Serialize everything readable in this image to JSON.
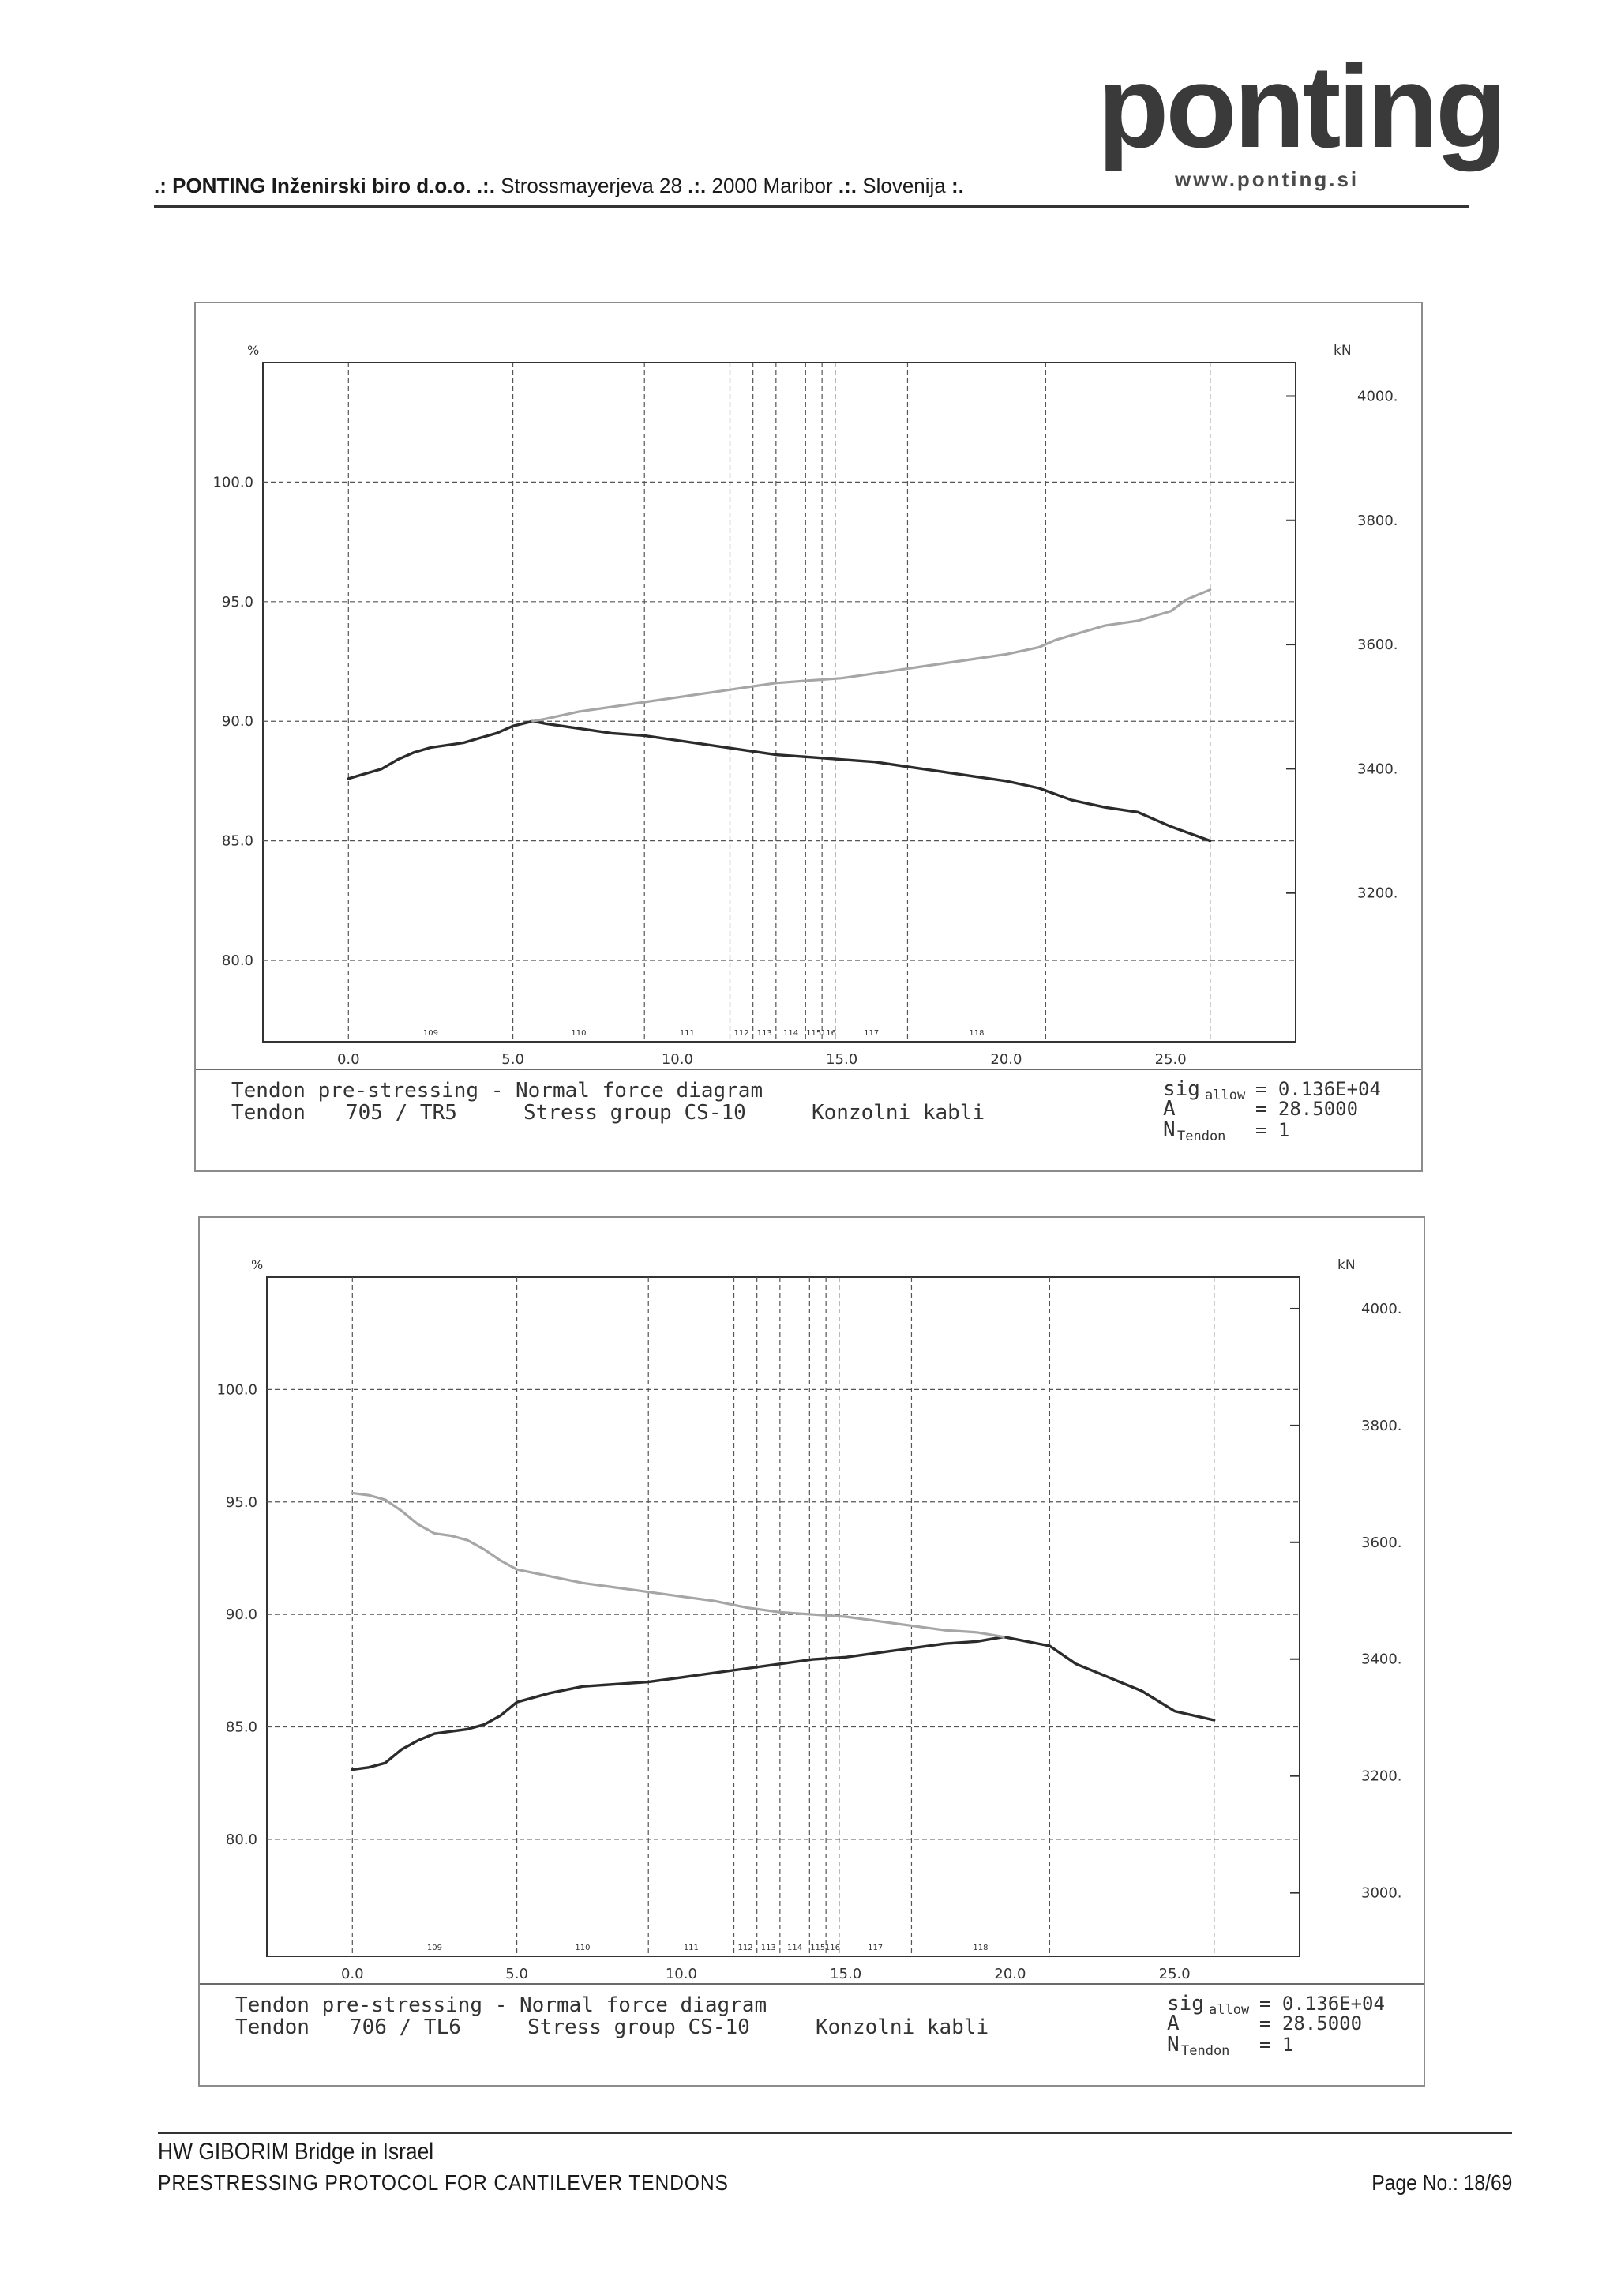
{
  "header": {
    "line_prefix": ".: ",
    "company": "PONTING Inženirski biro d.o.o.",
    "sep1": " .:. ",
    "street": "Strossmayerjeva 28",
    "sep2": " .:. ",
    "city": "2000 Maribor",
    "sep3": " .:. ",
    "country": "Slovenija",
    "line_suffix": " :.",
    "logo_text": "ponting",
    "logo_url": "www.ponting.si"
  },
  "footer": {
    "project": "HW GIBORIM Bridge in Israel",
    "document": "PRESTRESSING PROTOCOL FOR CANTILEVER TENDONS",
    "page": "Page No.: 18/69"
  },
  "colors": {
    "force_line": "#2b2b2b",
    "percent_line": "#a6a6a6",
    "grid": "#555555",
    "frame": "#8c8c8c"
  },
  "chart_data": [
    {
      "type": "line",
      "left_unit": "%",
      "right_unit": "kN",
      "left_ticks": [
        "100.0",
        "95.0",
        "90.0",
        "85.0",
        "80.0"
      ],
      "left_tick_values": [
        100,
        95,
        90,
        85,
        80
      ],
      "ylim": [
        76.6,
        105
      ],
      "right_ticks": [
        "4000.",
        "3800.",
        "3600.",
        "3400.",
        "3200."
      ],
      "right_tick_values": [
        3988.5,
        3788.5,
        3588.5,
        3388.5,
        3188.5
      ],
      "x_ticks": [
        "0.0",
        "5.0",
        "10.0",
        "15.0",
        "20.0",
        "25.0"
      ],
      "x_tick_values": [
        0,
        5,
        10,
        15,
        20,
        25
      ],
      "xlim": [
        -2.6,
        28.8
      ],
      "segment_boundaries": [
        0,
        5.0,
        9.0,
        11.6,
        12.3,
        13.0,
        13.9,
        14.4,
        14.8,
        17.0,
        21.2,
        26.2
      ],
      "segment_labels": [
        "109",
        "110",
        "111",
        "112",
        "113",
        "114",
        "115",
        "116",
        "117",
        "118"
      ],
      "series": [
        {
          "style": "dark",
          "x": [
            0,
            0.5,
            1,
            1.5,
            2,
            2.5,
            3,
            3.5,
            4,
            4.5,
            5,
            5.6,
            6,
            7,
            8,
            9,
            10,
            11,
            12,
            13,
            14,
            15,
            16,
            17,
            18,
            19,
            20,
            21,
            22,
            23,
            24,
            25,
            26.2
          ],
          "y": [
            87.6,
            87.8,
            88.0,
            88.4,
            88.7,
            88.9,
            89.0,
            89.1,
            89.3,
            89.5,
            89.8,
            90.0,
            89.9,
            89.7,
            89.5,
            89.4,
            89.2,
            89.0,
            88.8,
            88.6,
            88.5,
            88.4,
            88.3,
            88.1,
            87.9,
            87.7,
            87.5,
            87.2,
            86.7,
            86.4,
            86.2,
            85.6,
            85.0
          ]
        },
        {
          "style": "light",
          "x": [
            5.6,
            6,
            7,
            8,
            9,
            10,
            11,
            12,
            13,
            14,
            15,
            16,
            17,
            18,
            19,
            20,
            21,
            21.5,
            22,
            23,
            24,
            25,
            25.5,
            26.2
          ],
          "y": [
            90.0,
            90.1,
            90.4,
            90.6,
            90.8,
            91.0,
            91.2,
            91.4,
            91.6,
            91.7,
            91.8,
            92.0,
            92.2,
            92.4,
            92.6,
            92.8,
            93.1,
            93.4,
            93.6,
            94.0,
            94.2,
            94.6,
            95.1,
            95.5
          ]
        }
      ],
      "caption": {
        "line1": "Tendon pre-stressing   -   Normal force diagram",
        "tendon_label": "Tendon",
        "tendon_id": "705 / TR5",
        "stress_group": "Stress group CS-10",
        "cable_type": "Konzolni kabli",
        "sig_label": "sig",
        "sig_sub": "allow",
        "sig_value": "= 0.136E+04",
        "a_label": "A",
        "a_value": "= 28.5000",
        "n_label": "N",
        "n_sub": "Tendon",
        "n_value": "= 1"
      }
    },
    {
      "type": "line",
      "left_unit": "%",
      "right_unit": "kN",
      "left_ticks": [
        "100.0",
        "95.0",
        "90.0",
        "85.0",
        "80.0"
      ],
      "left_tick_values": [
        100,
        95,
        90,
        85,
        80
      ],
      "ylim": [
        74.8,
        105
      ],
      "right_ticks": [
        "4000.",
        "3800.",
        "3600.",
        "3400.",
        "3200.",
        "3000."
      ],
      "right_tick_values": [
        3988.5,
        3788.5,
        3588.5,
        3388.5,
        3188.5,
        2988.5
      ],
      "x_ticks": [
        "0.0",
        "5.0",
        "10.0",
        "15.0",
        "20.0",
        "25.0"
      ],
      "x_tick_values": [
        0,
        5,
        10,
        15,
        20,
        25
      ],
      "xlim": [
        -2.6,
        28.8
      ],
      "segment_boundaries": [
        0,
        5.0,
        9.0,
        11.6,
        12.3,
        13.0,
        13.9,
        14.4,
        14.8,
        17.0,
        21.2,
        26.2
      ],
      "segment_labels": [
        "109",
        "110",
        "111",
        "112",
        "113",
        "114",
        "115",
        "116",
        "117",
        "118"
      ],
      "series": [
        {
          "style": "dark",
          "x": [
            0,
            0.5,
            1,
            1.5,
            2,
            2.5,
            3,
            3.5,
            4,
            4.5,
            5,
            6,
            7,
            8,
            9,
            10,
            11,
            12,
            13,
            14,
            15,
            16,
            17,
            18,
            19,
            19.8,
            21.2,
            22,
            22.5,
            23,
            24,
            25,
            26.2
          ],
          "y": [
            83.1,
            83.2,
            83.4,
            84.0,
            84.4,
            84.7,
            84.8,
            84.9,
            85.1,
            85.5,
            86.1,
            86.5,
            86.8,
            86.9,
            87.0,
            87.2,
            87.4,
            87.6,
            87.8,
            88.0,
            88.1,
            88.3,
            88.5,
            88.7,
            88.8,
            89.0,
            88.6,
            87.8,
            87.5,
            87.2,
            86.6,
            85.7,
            85.3
          ]
        },
        {
          "style": "light",
          "x": [
            0,
            0.5,
            1,
            1.5,
            2,
            2.5,
            3,
            3.5,
            4,
            4.5,
            5,
            6,
            7,
            8,
            9,
            10,
            11,
            12,
            13,
            14,
            15,
            16,
            17,
            18,
            19,
            19.8
          ],
          "y": [
            95.4,
            95.3,
            95.1,
            94.6,
            94.0,
            93.6,
            93.5,
            93.3,
            92.9,
            92.4,
            92.0,
            91.7,
            91.4,
            91.2,
            91.0,
            90.8,
            90.6,
            90.3,
            90.1,
            90.0,
            89.9,
            89.7,
            89.5,
            89.3,
            89.2,
            89.0
          ]
        }
      ],
      "caption": {
        "line1": "Tendon pre-stressing   -   Normal force diagram",
        "tendon_label": "Tendon",
        "tendon_id": "706 / TL6",
        "stress_group": "Stress group CS-10",
        "cable_type": "Konzolni kabli",
        "sig_label": "sig",
        "sig_sub": "allow",
        "sig_value": "= 0.136E+04",
        "a_label": "A",
        "a_value": "= 28.5000",
        "n_label": "N",
        "n_sub": "Tendon",
        "n_value": "= 1"
      }
    }
  ]
}
